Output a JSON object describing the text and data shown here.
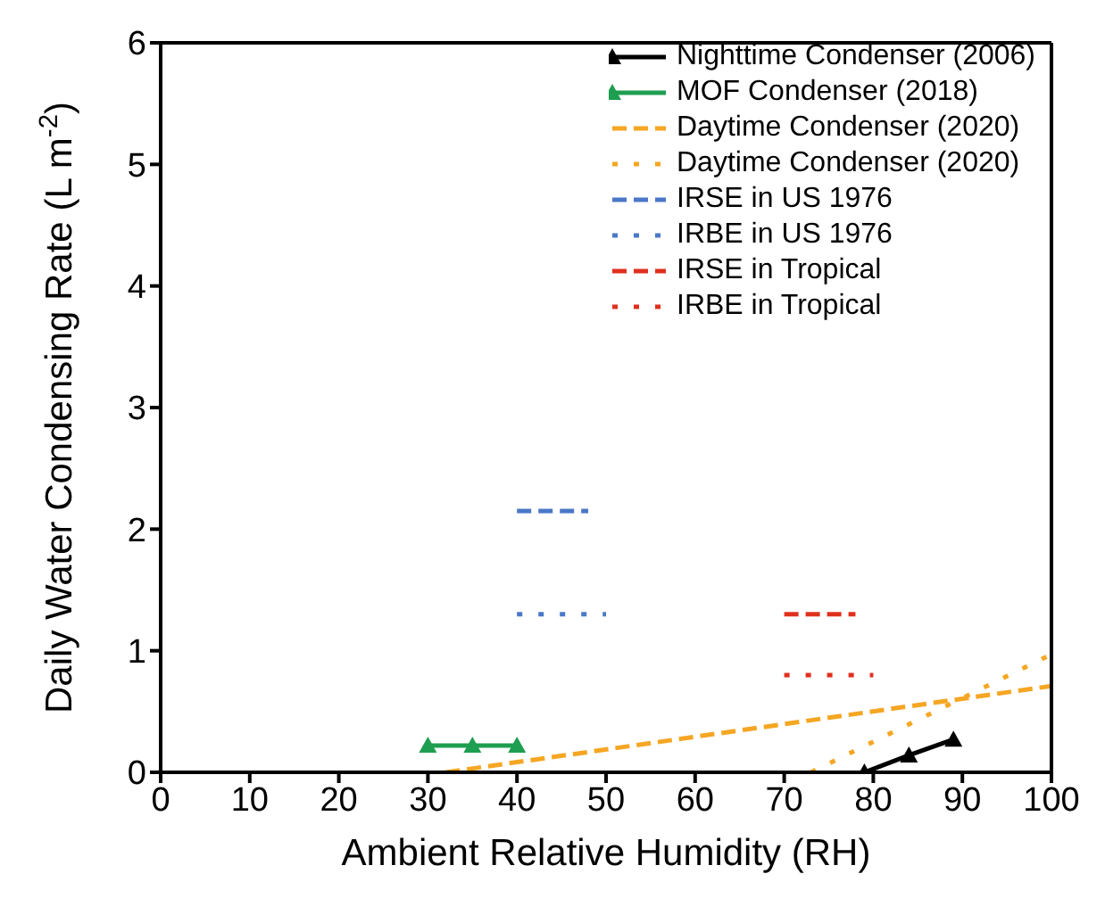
{
  "chart_data": {
    "type": "line",
    "xlabel": "Ambient Relative Humidity (RH)",
    "ylabel": "Daily Water Condensing Rate (L m$^{-2}$)",
    "xlim": [
      0,
      100
    ],
    "xticks": [
      0,
      10,
      20,
      30,
      40,
      50,
      60,
      70,
      80,
      90,
      100
    ],
    "ylim": [
      0,
      6
    ],
    "yticks": [
      0,
      1,
      2,
      3,
      4,
      5,
      6
    ],
    "legend": "top right",
    "series": [
      {
        "name": "Nighttime Condenser (2006)",
        "color": "#000000",
        "x": [
          79,
          84,
          89
        ],
        "values": [
          0,
          0.14,
          0.27
        ],
        "marker": "triangle",
        "line_style": "solid"
      },
      {
        "name": "MOF Condenser (2018)",
        "color": "#1e9e50",
        "x": [
          30,
          35,
          40
        ],
        "values": [
          0.22,
          0.22,
          0.22
        ],
        "marker": "triangle",
        "line_style": "solid"
      },
      {
        "name": "Daytime Condenser (2020)",
        "color": "#f5a623",
        "x": [
          32,
          100
        ],
        "values": [
          0,
          0.71
        ],
        "marker": "none",
        "line_style": "dashed"
      },
      {
        "name": "Daytime Condenser (2020)",
        "color": "#f5a623",
        "x": [
          73,
          100
        ],
        "values": [
          0,
          0.97
        ],
        "marker": "none",
        "line_style": "dotted"
      },
      {
        "name": "IRSE in US 1976",
        "color": "#4a78c8",
        "x": [
          40,
          48
        ],
        "values": [
          2.15,
          2.15
        ],
        "marker": "none",
        "line_style": "dashed"
      },
      {
        "name": "IRBE in US 1976",
        "color": "#4a78c8",
        "x": [
          40,
          50
        ],
        "values": [
          1.3,
          1.3
        ],
        "marker": "none",
        "line_style": "dotted"
      },
      {
        "name": "IRSE in Tropical",
        "color": "#e0301e",
        "x": [
          70,
          78
        ],
        "values": [
          1.3,
          1.3
        ],
        "marker": "none",
        "line_style": "dashed"
      },
      {
        "name": "IRBE in Tropical",
        "color": "#e0301e",
        "x": [
          70,
          80
        ],
        "values": [
          0.8,
          0.8
        ],
        "marker": "none",
        "line_style": "dotted"
      }
    ]
  }
}
